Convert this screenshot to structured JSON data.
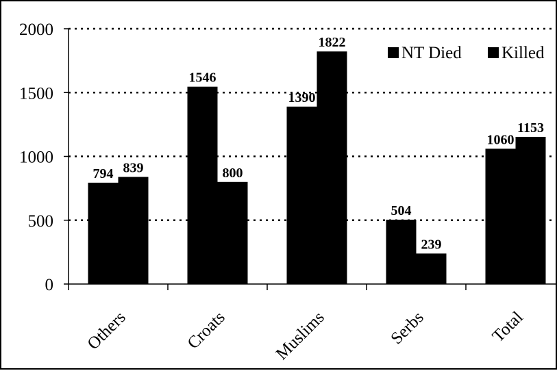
{
  "chart_data": {
    "type": "bar",
    "title": "",
    "xlabel": "",
    "ylabel": "",
    "categories": [
      "Others",
      "Croats",
      "Muslims",
      "Serbs",
      "Total"
    ],
    "series": [
      {
        "name": "NT Died",
        "values": [
          794,
          1546,
          1390,
          504,
          1060
        ],
        "labels": [
          "794",
          "1546",
          "1390",
          "504",
          "1060"
        ]
      },
      {
        "name": "Killed",
        "values": [
          839,
          800,
          1822,
          239,
          1153
        ],
        "labels": [
          "839",
          "800",
          "1822",
          "239",
          "1153"
        ]
      }
    ],
    "ylim": [
      0,
      2000
    ],
    "yticks": [
      0,
      500,
      1000,
      1500,
      2000
    ],
    "ytick_labels": [
      "0",
      "500",
      "1000",
      "1500",
      "2000"
    ],
    "grid": "horizontal dotted",
    "legend_position": "top-right",
    "bar_color": "#000000"
  }
}
